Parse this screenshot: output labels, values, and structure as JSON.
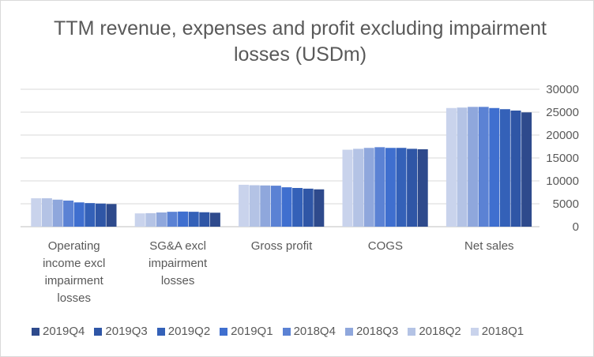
{
  "chart_data": {
    "type": "bar",
    "title": "TTM revenue, expenses and profit excluding impairment losses (USDm)",
    "categories": [
      "Operating income excl impairment losses",
      "SG&A excl impairment losses",
      "Gross profit",
      "COGS",
      "Net sales"
    ],
    "category_lines": [
      [
        "Operating",
        "income excl",
        "impairment",
        "losses"
      ],
      [
        "SG&A excl",
        "impairment",
        "losses"
      ],
      [
        "Gross profit"
      ],
      [
        "COGS"
      ],
      [
        "Net sales"
      ]
    ],
    "ylim": [
      0,
      30000
    ],
    "yticks": [
      0,
      5000,
      10000,
      15000,
      20000,
      25000,
      30000
    ],
    "grid": true,
    "legend_position": "bottom",
    "series": [
      {
        "name": "2019Q4",
        "color": "#2e4a8c",
        "values": [
          4950,
          3050,
          8150,
          16900,
          24950
        ]
      },
      {
        "name": "2019Q3",
        "color": "#2f56a6",
        "values": [
          5050,
          3150,
          8300,
          17000,
          25350
        ]
      },
      {
        "name": "2019Q2",
        "color": "#3461b8",
        "values": [
          5150,
          3250,
          8450,
          17200,
          25650
        ]
      },
      {
        "name": "2019Q1",
        "color": "#3f6fcf",
        "values": [
          5300,
          3300,
          8600,
          17200,
          25900
        ]
      },
      {
        "name": "2018Q4",
        "color": "#5b82d4",
        "values": [
          5700,
          3250,
          8950,
          17350,
          26150
        ]
      },
      {
        "name": "2018Q3",
        "color": "#8fa7dc",
        "values": [
          5900,
          3100,
          9000,
          17200,
          26150
        ]
      },
      {
        "name": "2018Q2",
        "color": "#b4c3e5",
        "values": [
          6200,
          2950,
          9050,
          17000,
          26000
        ]
      },
      {
        "name": "2018Q1",
        "color": "#c9d3ec",
        "values": [
          6200,
          2900,
          9150,
          16800,
          25900
        ]
      }
    ]
  }
}
